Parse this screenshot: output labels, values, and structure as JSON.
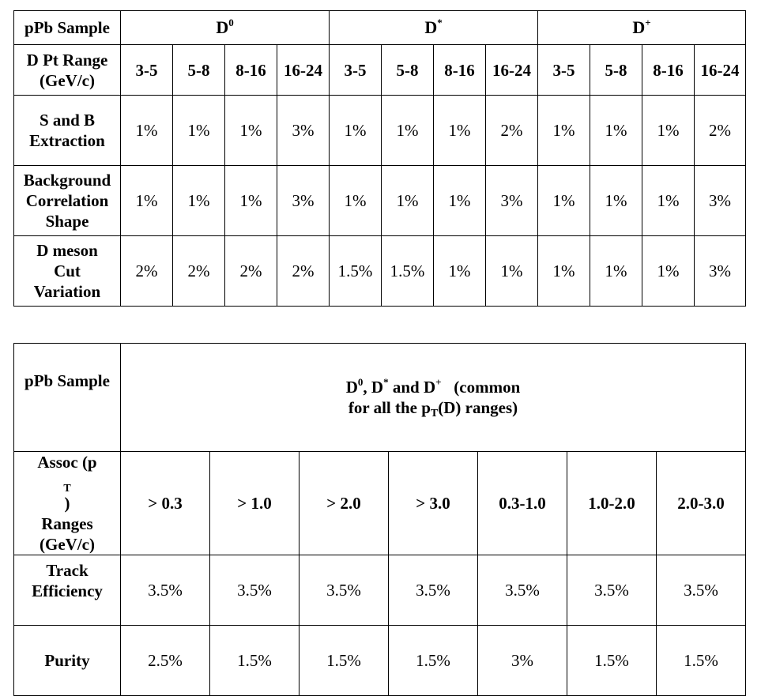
{
  "table1": {
    "corner_label": "pPb Sample",
    "groups": [
      {
        "base": "D",
        "sup": "0"
      },
      {
        "base": "D",
        "sup": "*"
      },
      {
        "base": "D",
        "sup": "+"
      }
    ],
    "range_label": [
      "D Pt Range",
      "(GeV/c)"
    ],
    "ranges": [
      "3-5",
      "5-8",
      "8-16",
      "16-24",
      "3-5",
      "5-8",
      "8-16",
      "16-24",
      "3-5",
      "5-8",
      "8-16",
      "16-24"
    ],
    "rows": [
      {
        "label": [
          "S and B",
          "Extraction"
        ],
        "values": [
          "1%",
          "1%",
          "1%",
          "3%",
          "1%",
          "1%",
          "1%",
          "2%",
          "1%",
          "1%",
          "1%",
          "2%"
        ]
      },
      {
        "label": [
          "Background",
          "Correlation",
          "Shape"
        ],
        "values": [
          "1%",
          "1%",
          "1%",
          "3%",
          "1%",
          "1%",
          "1%",
          "3%",
          "1%",
          "1%",
          "1%",
          "3%"
        ]
      },
      {
        "label": [
          "D meson",
          "Cut",
          "Variation"
        ],
        "values": [
          "2%",
          "2%",
          "2%",
          "2%",
          "1.5%",
          "1.5%",
          "1%",
          "1%",
          "1%",
          "1%",
          "1%",
          "3%"
        ]
      }
    ]
  },
  "table2": {
    "corner_label": "pPb Sample",
    "header": {
      "d0": "D",
      "d0_sup": "0",
      "sep1": ", ",
      "dstar": "D",
      "dstar_sup": "*",
      "sep2": " and ",
      "dplus": "D",
      "dplus_sup": "+",
      "tail1": "   (common",
      "line2_pre": "for all the p",
      "line2_sub": "T",
      "line2_post": "(D) ranges)"
    },
    "assoc_label": {
      "l1_pre": "Assoc (p",
      "l1_sub": "T",
      "l1_post": ")",
      "l2": "Ranges",
      "l3": "(GeV/c)"
    },
    "ranges": [
      "> 0.3",
      "> 1.0",
      "> 2.0",
      "> 3.0",
      "0.3-1.0",
      "1.0-2.0",
      "2.0-3.0"
    ],
    "rows": [
      {
        "label": [
          "Track",
          "Efficiency"
        ],
        "values": [
          "3.5%",
          "3.5%",
          "3.5%",
          "3.5%",
          "3.5%",
          "3.5%",
          "3.5%"
        ]
      },
      {
        "label": [
          "Purity"
        ],
        "values": [
          "2.5%",
          "1.5%",
          "1.5%",
          "1.5%",
          "3%",
          "1.5%",
          "1.5%"
        ]
      }
    ]
  }
}
